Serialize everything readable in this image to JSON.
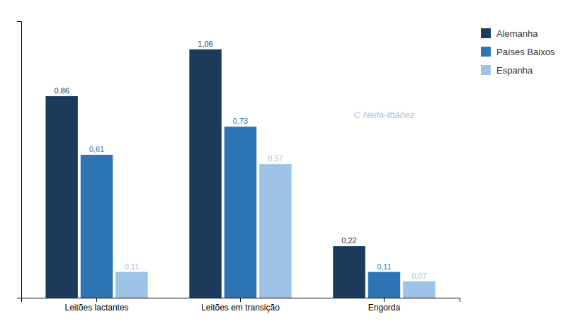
{
  "chart_data": {
    "type": "bar",
    "categories": [
      "Leitões lactantes",
      "Leitões em transição",
      "Engorda"
    ],
    "series": [
      {
        "name": "Alemanha",
        "color": "#1b3a5c",
        "values": [
          0.86,
          1.06,
          0.22
        ],
        "value_labels": [
          "0,86",
          "1,06",
          "0,22"
        ]
      },
      {
        "name": "Países Baixos",
        "color": "#2e75b6",
        "values": [
          0.61,
          0.73,
          0.11
        ],
        "value_labels": [
          "0,61",
          "0,73",
          "0,11"
        ]
      },
      {
        "name": "Espanha",
        "color": "#9dc3e6",
        "values": [
          0.11,
          0.57,
          0.07
        ],
        "value_labels": [
          "0,11",
          "0,57",
          "0,07"
        ]
      }
    ],
    "ylim": [
      0,
      1.18
    ],
    "data_labels": true,
    "tick_labels": "x",
    "legend": "upper right",
    "annotations": [
      {
        "text": "C Neila-Ibáñez",
        "color": "#aac8e0"
      }
    ]
  }
}
